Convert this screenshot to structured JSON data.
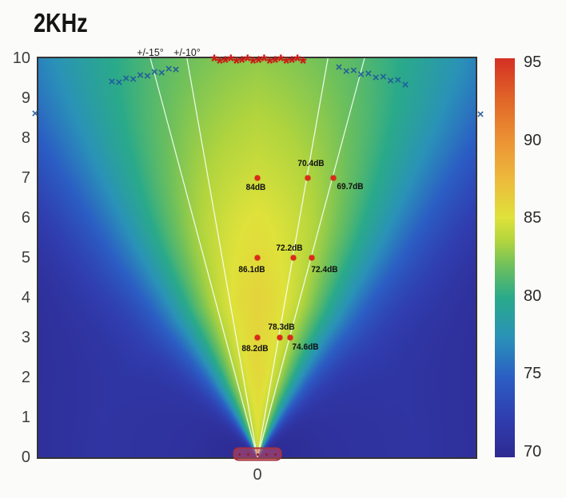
{
  "title": "2KHz",
  "y_axis": {
    "tick_labels": [
      "10",
      "9",
      "8",
      "7",
      "6",
      "5",
      "4",
      "3",
      "2",
      "1",
      "0"
    ]
  },
  "x_axis": {
    "tick_labels": [
      "0"
    ]
  },
  "colorbar": {
    "tick_labels": [
      "95",
      "90",
      "85",
      "80",
      "75",
      "70"
    ]
  },
  "beam_lines": [
    {
      "angle_deg": 15,
      "label": "+/-15°"
    },
    {
      "angle_deg": 10,
      "label": "+/-10°"
    }
  ],
  "chart_data": {
    "type": "heatmap",
    "title": "2KHz",
    "x_range": [
      -5.48,
      5.46
    ],
    "y_range": [
      0,
      10
    ],
    "value_range": [
      70,
      95
    ],
    "colorbar_ticks": [
      95,
      90,
      85,
      80,
      75,
      70
    ],
    "beam_line_angles_deg": [
      10,
      15
    ],
    "measurements": [
      {
        "x": 0,
        "y": 3,
        "label": "88.2dB",
        "label_dx": -3,
        "label_dy": 14
      },
      {
        "x": 0.56,
        "y": 3,
        "label": "78.3dB",
        "label_dx": 2,
        "label_dy": -13
      },
      {
        "x": 0.82,
        "y": 3,
        "label": "74.6dB",
        "label_dx": 19,
        "label_dy": 12
      },
      {
        "x": 0,
        "y": 5,
        "label": "86.1dB",
        "label_dx": -7,
        "label_dy": 15
      },
      {
        "x": 0.9,
        "y": 5,
        "label": "72.2dB",
        "label_dx": -5,
        "label_dy": -12
      },
      {
        "x": 1.36,
        "y": 5,
        "label": "72.4dB",
        "label_dx": 16,
        "label_dy": 15
      },
      {
        "x": 0,
        "y": 7,
        "label": "84dB",
        "label_dx": -2,
        "label_dy": 12
      },
      {
        "x": 1.26,
        "y": 7,
        "label": "70.4dB",
        "label_dx": 4,
        "label_dy": -18
      },
      {
        "x": 1.9,
        "y": 7,
        "label": "69.7dB",
        "label_dx": 21,
        "label_dy": 11
      }
    ],
    "asterisk_row": {
      "y": 9.88,
      "x_start": -1.08,
      "x_end": 1.14,
      "count": 17,
      "glyph": "*"
    },
    "x_marker_chains": [
      {
        "from": [
          -3.64,
          9.38
        ],
        "to": [
          -2.04,
          9.74
        ],
        "count": 10,
        "glyph": "×"
      },
      {
        "from": [
          2.04,
          9.74
        ],
        "to": [
          3.7,
          9.36
        ],
        "count": 10,
        "glyph": "×"
      }
    ],
    "x_marker_singles": [
      [
        -5.56,
        8.6
      ],
      [
        5.58,
        8.58
      ]
    ],
    "source_marker": {
      "x": 0,
      "y": 0.08,
      "half_width": 0.57,
      "half_height": 0.13,
      "inner_dots": 5
    },
    "heatmap_model": {
      "axis_profile": [
        [
          0,
          85.0
        ],
        [
          2,
          86.0
        ],
        [
          4,
          86.3
        ],
        [
          6,
          85.5
        ],
        [
          8,
          84.3
        ],
        [
          10,
          83.2
        ]
      ],
      "axis_slope_beyond": -0.55,
      "directivity": {
        "max_loss_db": 15,
        "center_deg": 25,
        "width_deg": 7,
        "spread": 0.25,
        "ref_r": 11
      },
      "colormap": [
        [
          70,
          "#2e2a92"
        ],
        [
          72.5,
          "#303eb0"
        ],
        [
          75,
          "#2b5ec4"
        ],
        [
          77.5,
          "#2a92b8"
        ],
        [
          80,
          "#2aaa8a"
        ],
        [
          82,
          "#6ec05c"
        ],
        [
          83.5,
          "#b0d43e"
        ],
        [
          85,
          "#dfe23a"
        ],
        [
          87.5,
          "#edb83c"
        ],
        [
          90,
          "#eb9033"
        ],
        [
          92.5,
          "#e06428"
        ],
        [
          95,
          "#d43023"
        ]
      ]
    },
    "colors": {
      "dot": "#dc2a1a",
      "asterisk": "#cb1a1a",
      "x_marker": "#20589c",
      "beam_line": "rgba(250,255,250,0.85)",
      "source_fill": "rgba(226,77,88,0.48)",
      "source_border": "#a8303e"
    }
  }
}
